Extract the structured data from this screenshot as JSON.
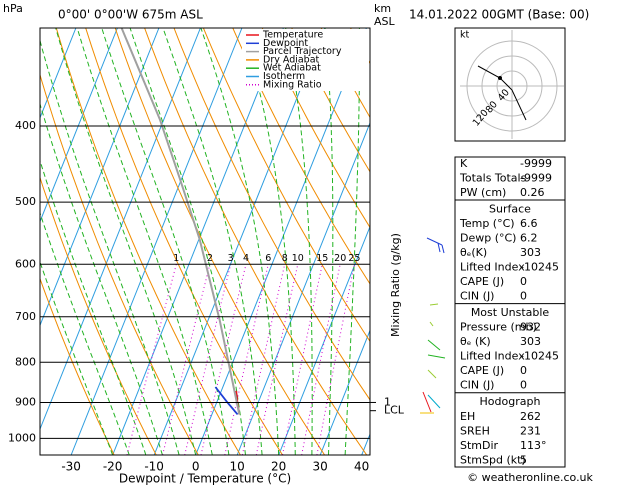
{
  "header": {
    "pressure_unit": "hPa",
    "location": "0°00' 0°00'W 675m ASL",
    "height_unit": [
      "km",
      "ASL"
    ],
    "datetime": "14.01.2022 00GMT (Base: 00)"
  },
  "footer": "© weatheronline.co.uk",
  "chart_data": {
    "type": "skewt",
    "xlabel": "Dewpoint / Temperature (°C)",
    "y2label": "Mixing Ratio (g/kg)",
    "xlim": [
      -37.5,
      42
    ],
    "ylim": [
      1050,
      300
    ],
    "log_y": true,
    "xticks": [
      -30,
      -20,
      -10,
      0,
      10,
      20,
      30,
      40
    ],
    "yticks": [
      400,
      500,
      600,
      700,
      800,
      900,
      1000
    ],
    "series": [
      {
        "name": "Temperature",
        "color": "#e8141c",
        "pressure": [
          932,
          900,
          870
        ],
        "values": [
          6.6,
          5.0,
          3.6
        ]
      },
      {
        "name": "Dewpoint",
        "color": "#1f3fd6",
        "pressure": [
          932,
          900,
          860
        ],
        "values": [
          6.2,
          2.6,
          -1.8
        ]
      },
      {
        "name": "Parcel Trajectory",
        "color": "#a0a0a0",
        "pressure": [
          932,
          850,
          707,
          558,
          467,
          392,
          300
        ],
        "values": [
          6.6,
          2.0,
          -7.2,
          -19.8,
          -30.4,
          -41,
          -59
        ]
      },
      {
        "name": "Dry Adiabat",
        "color": "#f08c00"
      },
      {
        "name": "Wet Adiabat",
        "color": "#22b322"
      },
      {
        "name": "Isotherm",
        "color": "#2f9ee0"
      },
      {
        "name": "Mixing Ratio",
        "color": "#d000d0"
      }
    ],
    "mixing_ratio_labels": [
      1,
      2,
      3,
      4,
      6,
      8,
      10,
      15,
      20,
      25
    ],
    "km_labels": [
      {
        "value": 900,
        "label": "1"
      },
      {
        "value": 922,
        "label": "LCL"
      }
    ]
  },
  "hodograph": {
    "unit": "kt",
    "rings": [
      "40",
      "80",
      "120"
    ]
  },
  "panel": {
    "indices": {
      "rows": [
        [
          "K",
          "-9999"
        ],
        [
          "Totals Totals",
          "-9999"
        ],
        [
          "PW (cm)",
          "0.26"
        ]
      ]
    },
    "surface": {
      "title": "Surface",
      "rows": [
        [
          "Temp (°C)",
          "6.6"
        ],
        [
          "Dewp (°C)",
          "6.2"
        ],
        [
          "θₑ(K)",
          "303"
        ],
        [
          "Lifted Index",
          "-10245"
        ],
        [
          "CAPE (J)",
          "0"
        ],
        [
          "CIN (J)",
          "0"
        ]
      ]
    },
    "most_unstable": {
      "title": "Most Unstable",
      "rows": [
        [
          "Pressure (mb)",
          "932"
        ],
        [
          "θₑ (K)",
          "303"
        ],
        [
          "Lifted Index",
          "-10245"
        ],
        [
          "CAPE (J)",
          "0"
        ],
        [
          "CIN (J)",
          "0"
        ]
      ]
    },
    "hodograph": {
      "title": "Hodograph",
      "rows": [
        [
          "EH",
          "262"
        ],
        [
          "SREH",
          "231"
        ],
        [
          "StmDir",
          "113°"
        ],
        [
          "StmSpd (kt)",
          "5"
        ]
      ]
    }
  }
}
